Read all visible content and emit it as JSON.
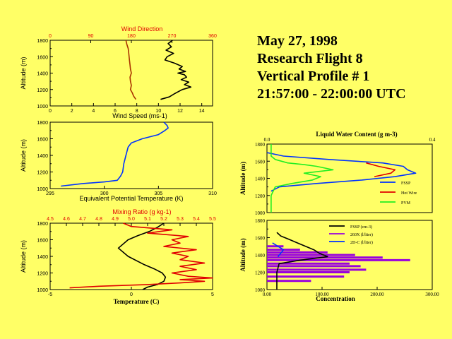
{
  "title_lines": [
    "May 27, 1998",
    "Research Flight 8",
    "Vertical Profile # 1",
    "21:57:00 - 22:00:00 UTC"
  ],
  "colors": {
    "background": "#ffff66",
    "red": "#e00000",
    "blue": "#0033ff",
    "green": "#22ee22",
    "purple": "#9900dd",
    "black": "#000000"
  },
  "chart_data": [
    {
      "id": "wind",
      "type": "line",
      "title": "Wind Direction",
      "xlabel": "Wind Speed (ms-1)",
      "ylabel": "Altitude (m)",
      "top_axis": {
        "label": "Wind Direction",
        "ticks": [
          0,
          90,
          180,
          270,
          360
        ],
        "range": [
          0,
          360
        ]
      },
      "xlim": [
        0,
        15
      ],
      "xticks": [
        0,
        2,
        4,
        6,
        8,
        10,
        12,
        14
      ],
      "ylim": [
        1000,
        1800
      ],
      "yticks": [
        1000,
        1200,
        1400,
        1600,
        1800
      ],
      "series": [
        {
          "name": "Wind Direction",
          "axis": "top",
          "color": "#aa3300",
          "y": [
            1080,
            1120,
            1160,
            1200,
            1250,
            1300,
            1350,
            1400,
            1450,
            1500,
            1550,
            1600,
            1650,
            1700,
            1750,
            1800
          ],
          "x": [
            190,
            185,
            182,
            178,
            180,
            178,
            177,
            180,
            178,
            177,
            176,
            175,
            174,
            173,
            170,
            168
          ]
        },
        {
          "name": "Wind Speed",
          "axis": "bottom",
          "color": "#000000",
          "y": [
            1080,
            1110,
            1150,
            1200,
            1230,
            1260,
            1290,
            1320,
            1350,
            1380,
            1400,
            1420,
            1450,
            1480,
            1520,
            1560,
            1600,
            1640,
            1680,
            1720,
            1760,
            1800
          ],
          "x": [
            10.2,
            11,
            11.5,
            12.2,
            13,
            12.4,
            12.8,
            12.1,
            12.6,
            12.4,
            11.8,
            12.5,
            11.9,
            12.2,
            11.5,
            10.6,
            10.8,
            11.4,
            10.7,
            11.2,
            10.9,
            11.3
          ]
        }
      ]
    },
    {
      "id": "theta_e",
      "type": "line",
      "xlabel": "Equivalent Potential Temperature (K)",
      "ylabel": "Altitude (m)",
      "xlim": [
        295,
        310
      ],
      "xticks": [
        295,
        300,
        305,
        310
      ],
      "ylim": [
        1000,
        1800
      ],
      "yticks": [
        1000,
        1200,
        1400,
        1600,
        1800
      ],
      "series": [
        {
          "name": "Equivalent Potential Temperature",
          "color": "#0033ff",
          "y": [
            1030,
            1060,
            1080,
            1100,
            1150,
            1200,
            1300,
            1400,
            1500,
            1550,
            1600,
            1650,
            1700,
            1730,
            1760,
            1800
          ],
          "x": [
            296,
            298,
            300,
            301.2,
            301.5,
            301.7,
            301.8,
            302,
            302.2,
            302.5,
            303.5,
            305,
            305.6,
            305.9,
            305.8,
            305.5
          ]
        }
      ]
    },
    {
      "id": "temp_mix",
      "type": "line",
      "xlabel": "Temperature (C)",
      "ylabel": "Altitude (m)",
      "top_axis": {
        "label": "Mixing Ratio (g kg-1)",
        "ticks": [
          4.5,
          4.6,
          4.7,
          4.8,
          4.9,
          5.0,
          5.1,
          5.2,
          5.3,
          5.4,
          5.5
        ],
        "range": [
          4.5,
          5.5
        ]
      },
      "xlim": [
        -5,
        5
      ],
      "xticks": [
        -5,
        0,
        5
      ],
      "ylim": [
        1000,
        1800
      ],
      "yticks": [
        1000,
        1200,
        1400,
        1600,
        1800
      ],
      "series": [
        {
          "name": "Temperature",
          "axis": "bottom",
          "color": "#000000",
          "y": [
            1000,
            1030,
            1060,
            1100,
            1150,
            1200,
            1250,
            1300,
            1400,
            1500,
            1600,
            1650,
            1700,
            1750,
            1800
          ],
          "x": [
            0.7,
            1.0,
            1.6,
            2.0,
            2.1,
            1.9,
            1.4,
            0.8,
            -0.2,
            -0.8,
            -0.2,
            0.4,
            1.1,
            1.6,
            2.0
          ]
        },
        {
          "name": "Mixing Ratio",
          "axis": "top",
          "color": "#e00000",
          "y": [
            1020,
            1040,
            1060,
            1080,
            1100,
            1120,
            1140,
            1160,
            1200,
            1240,
            1280,
            1320,
            1360,
            1400,
            1440,
            1480,
            1520,
            1560,
            1600,
            1640,
            1680,
            1720,
            1760,
            1800
          ],
          "x": [
            4.62,
            4.8,
            5.1,
            5.3,
            5.45,
            5.3,
            5.5,
            5.35,
            5.25,
            5.4,
            5.3,
            5.45,
            5.3,
            5.35,
            5.25,
            5.4,
            5.2,
            5.3,
            5.25,
            5.35,
            5.1,
            5.25,
            5.0,
            4.95
          ]
        }
      ]
    },
    {
      "id": "lwc",
      "type": "line",
      "title": "Liquid Water Content (g m-3)",
      "ylabel": "Altitude (m)",
      "top_axis": {
        "ticks": [
          0.0,
          0.4
        ],
        "range": [
          0.0,
          0.4
        ]
      },
      "ylim": [
        1000,
        1800
      ],
      "yticks": [
        1000,
        1200,
        1400,
        1600,
        1800
      ],
      "legend": [
        "FSSP",
        "Hot Wire",
        "PVM"
      ],
      "series": [
        {
          "name": "FSSP",
          "color": "#0033ff",
          "y": [
            1250,
            1300,
            1340,
            1380,
            1420,
            1460,
            1500,
            1540,
            1580,
            1620,
            1660,
            1700
          ],
          "x": [
            0.01,
            0.03,
            0.12,
            0.23,
            0.31,
            0.36,
            0.34,
            0.33,
            0.28,
            0.15,
            0.04,
            0.0
          ]
        },
        {
          "name": "Hot Wire",
          "color": "#e00000",
          "y": [
            1420,
            1460,
            1500,
            1540,
            1580
          ],
          "x": [
            0.26,
            0.3,
            0.31,
            0.27,
            0.24
          ]
        },
        {
          "name": "PVM",
          "color": "#22ee22",
          "y": [
            1000,
            1200,
            1300,
            1340,
            1380,
            1420,
            1460,
            1500,
            1540,
            1560,
            1580,
            1620,
            1660,
            1700,
            1800
          ],
          "x": [
            0.01,
            0.01,
            0.02,
            0.06,
            0.11,
            0.13,
            0.09,
            0.16,
            0.12,
            0.09,
            0.05,
            0.02,
            0.01,
            0.01,
            0.01
          ]
        }
      ]
    },
    {
      "id": "conc",
      "type": "line",
      "xlabel": "Concentration",
      "ylabel": "Altitude (m)",
      "xlim": [
        0,
        300
      ],
      "xticks": [
        0.0,
        100.0,
        200.0,
        300.0
      ],
      "ylim": [
        1000,
        1800
      ],
      "yticks": [
        1000,
        1200,
        1400,
        1600,
        1800
      ],
      "legend": [
        "FSSP (cm-3)",
        "260X (l/liter)",
        "2D-C (l/liter)"
      ],
      "series": [
        {
          "name": "FSSP (cm-3)",
          "color": "#000000",
          "y": [
            1000,
            1200,
            1300,
            1340,
            1380,
            1420,
            1460,
            1500,
            1540,
            1580,
            1620,
            1660
          ],
          "x": [
            18,
            18,
            22,
            60,
            110,
            95,
            85,
            70,
            55,
            40,
            25,
            18
          ]
        },
        {
          "name": "260X (l/liter)",
          "color": "#9900dd",
          "y": [
            1100,
            1150,
            1200,
            1230,
            1270,
            1300,
            1340,
            1370,
            1400,
            1430,
            1460,
            1500
          ],
          "x": [
            80,
            140,
            150,
            180,
            170,
            150,
            260,
            210,
            160,
            110,
            60,
            30
          ]
        },
        {
          "name": "2D-C (l/liter)",
          "color": "#0033ff",
          "y": [
            1380,
            1420,
            1460,
            1500,
            1540
          ],
          "x": [
            20,
            25,
            30,
            20,
            10
          ]
        }
      ]
    }
  ]
}
